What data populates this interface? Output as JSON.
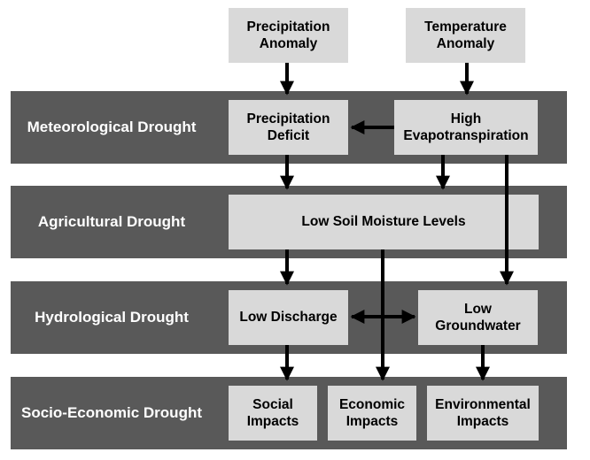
{
  "inputs": {
    "precipitation_anomaly": "Precipitation\nAnomaly",
    "temperature_anomaly": "Temperature\nAnomaly"
  },
  "bands": {
    "meteorological": "Meteorological Drought",
    "agricultural": "Agricultural Drought",
    "hydrological": "Hydrological Drought",
    "socio_economic": "Socio-Economic Drought"
  },
  "boxes": {
    "precipitation_deficit": "Precipitation\nDeficit",
    "high_evapotranspiration": "High\nEvapotranspiration",
    "low_soil_moisture": "Low Soil Moisture Levels",
    "low_discharge": "Low Discharge",
    "low_groundwater": "Low\nGroundwater",
    "social_impacts": "Social\nImpacts",
    "economic_impacts": "Economic\nImpacts",
    "environmental_impacts": "Environmental\nImpacts"
  },
  "colors": {
    "band": "#595959",
    "box": "#d9d9d9",
    "band_text": "#ffffff",
    "arrow": "#000000"
  }
}
